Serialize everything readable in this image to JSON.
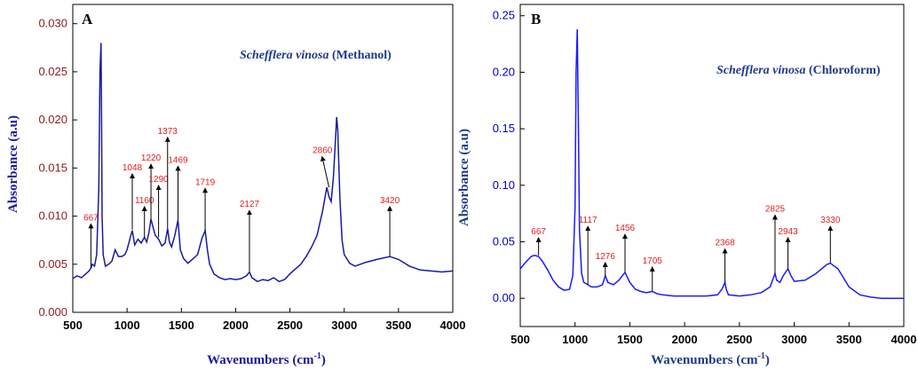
{
  "colors": {
    "axis_text_a": "#8b1a1a",
    "line_a": "#1a1aa0",
    "axis_text_b": "#0000cc",
    "line_b": "#1a1aff",
    "label_red": "#e02020",
    "legend_blue": "#1f3a8a"
  },
  "chart_data": [
    {
      "type": "line",
      "panel": "A",
      "legend_species": "Schefflera vinosa",
      "legend_solvent": " (Methanol)",
      "xlabel": "Wavenumbers (cm",
      "xlabel_sup": "-1",
      "xlabel_end": ")",
      "ylabel": "Absorbance (a.u)",
      "xlim": [
        500,
        4000
      ],
      "ylim": [
        0,
        0.032
      ],
      "xticks": [
        "500",
        "1000",
        "1500",
        "2000",
        "2500",
        "3000",
        "3500",
        "4000"
      ],
      "yticks": [
        "0.000",
        "0.005",
        "0.010",
        "0.015",
        "0.020",
        "0.025",
        "0.030"
      ],
      "grid": false,
      "series": [
        {
          "x": [
            500,
            540,
            580,
            620,
            650,
            667,
            680,
            700,
            720,
            740,
            750,
            760,
            765,
            770,
            780,
            800,
            830,
            860,
            890,
            920,
            950,
            980,
            1000,
            1030,
            1048,
            1070,
            1100,
            1130,
            1160,
            1180,
            1200,
            1220,
            1240,
            1260,
            1290,
            1320,
            1350,
            1373,
            1390,
            1410,
            1440,
            1469,
            1490,
            1520,
            1560,
            1600,
            1650,
            1690,
            1719,
            1740,
            1760,
            1800,
            1850,
            1900,
            1950,
            2000,
            2050,
            2100,
            2127,
            2150,
            2200,
            2250,
            2300,
            2350,
            2400,
            2450,
            2500,
            2550,
            2600,
            2650,
            2700,
            2750,
            2800,
            2840,
            2860,
            2880,
            2900,
            2920,
            2930,
            2940,
            2960,
            2980,
            3000,
            3050,
            3100,
            3200,
            3300,
            3420,
            3500,
            3600,
            3700,
            3800,
            3900,
            4000
          ],
          "y": [
            0.0035,
            0.0038,
            0.0036,
            0.004,
            0.0043,
            0.0046,
            0.005,
            0.0048,
            0.006,
            0.013,
            0.025,
            0.028,
            0.02,
            0.01,
            0.006,
            0.0048,
            0.005,
            0.0053,
            0.0065,
            0.0058,
            0.0058,
            0.006,
            0.0065,
            0.0078,
            0.0085,
            0.007,
            0.0076,
            0.0072,
            0.0078,
            0.0073,
            0.0082,
            0.0097,
            0.0088,
            0.008,
            0.0076,
            0.0069,
            0.0072,
            0.0087,
            0.0073,
            0.0068,
            0.008,
            0.0096,
            0.0065,
            0.0056,
            0.0051,
            0.0055,
            0.006,
            0.0077,
            0.0085,
            0.0065,
            0.005,
            0.004,
            0.0036,
            0.0034,
            0.0035,
            0.0034,
            0.0035,
            0.0038,
            0.0042,
            0.0036,
            0.0032,
            0.0034,
            0.0033,
            0.0036,
            0.0032,
            0.0034,
            0.004,
            0.0045,
            0.005,
            0.0058,
            0.0068,
            0.008,
            0.0105,
            0.013,
            0.012,
            0.0115,
            0.014,
            0.018,
            0.0203,
            0.019,
            0.012,
            0.0075,
            0.006,
            0.0051,
            0.0048,
            0.0052,
            0.0055,
            0.0058,
            0.0055,
            0.0048,
            0.0044,
            0.0043,
            0.0042,
            0.0043
          ]
        }
      ],
      "annotations": [
        {
          "label": "667",
          "x": 667,
          "y_from": 0.0046,
          "y_to": 0.009
        },
        {
          "label": "1048",
          "x": 1048,
          "y_from": 0.0086,
          "y_to": 0.0142
        },
        {
          "label": "1160",
          "x": 1160,
          "y_from": 0.0078,
          "y_to": 0.0108
        },
        {
          "label": "1220",
          "x": 1220,
          "y_from": 0.0097,
          "y_to": 0.0152
        },
        {
          "label": "1290",
          "x": 1290,
          "y_from": 0.0078,
          "y_to": 0.013
        },
        {
          "label": "1373",
          "x": 1373,
          "y_from": 0.0087,
          "y_to": 0.018
        },
        {
          "label": "1469",
          "x": 1469,
          "y_from": 0.0096,
          "y_to": 0.015
        },
        {
          "label": "1719",
          "x": 1719,
          "y_from": 0.0085,
          "y_to": 0.0127
        },
        {
          "label": "2127",
          "x": 2127,
          "y_from": 0.0043,
          "y_to": 0.0104
        },
        {
          "label": "2860",
          "x": 2860,
          "y_from": 0.013,
          "y_to": 0.016,
          "x_from": 2800
        },
        {
          "label": "3420",
          "x": 3420,
          "y_from": 0.0058,
          "y_to": 0.0108
        }
      ]
    },
    {
      "type": "line",
      "panel": "B",
      "legend_species": "Schefflera vinosa",
      "legend_solvent": " (Chloroform)",
      "xlabel": "Wavenumbers (cm",
      "xlabel_sup": "-1",
      "xlabel_end": ")",
      "ylabel": "Absorbance (a.u)",
      "xlim": [
        500,
        4000
      ],
      "ylim": [
        -0.025,
        0.26
      ],
      "xticks": [
        "500",
        "1000",
        "1500",
        "2000",
        "2500",
        "3000",
        "3500",
        "4000"
      ],
      "yticks": [
        "0.00",
        "0.05",
        "0.10",
        "0.15",
        "0.20",
        "0.25"
      ],
      "grid": false,
      "series": [
        {
          "x": [
            500,
            550,
            600,
            630,
            667,
            700,
            750,
            800,
            850,
            900,
            950,
            980,
            1000,
            1010,
            1020,
            1030,
            1040,
            1060,
            1080,
            1117,
            1150,
            1200,
            1250,
            1276,
            1300,
            1350,
            1400,
            1456,
            1500,
            1550,
            1600,
            1650,
            1705,
            1750,
            1800,
            1900,
            2000,
            2100,
            2200,
            2300,
            2340,
            2368,
            2380,
            2400,
            2500,
            2600,
            2700,
            2780,
            2810,
            2825,
            2840,
            2870,
            2900,
            2943,
            2970,
            3000,
            3100,
            3200,
            3300,
            3330,
            3400,
            3500,
            3600,
            3700,
            3800,
            3900,
            4000
          ],
          "y": [
            0.026,
            0.032,
            0.037,
            0.038,
            0.037,
            0.033,
            0.025,
            0.016,
            0.01,
            0.007,
            0.008,
            0.02,
            0.08,
            0.2,
            0.238,
            0.16,
            0.06,
            0.022,
            0.014,
            0.012,
            0.01,
            0.01,
            0.012,
            0.02,
            0.014,
            0.012,
            0.016,
            0.023,
            0.014,
            0.008,
            0.006,
            0.005,
            0.006,
            0.004,
            0.003,
            0.002,
            0.002,
            0.002,
            0.002,
            0.003,
            0.008,
            0.014,
            0.008,
            0.003,
            0.002,
            0.003,
            0.005,
            0.01,
            0.018,
            0.022,
            0.016,
            0.014,
            0.02,
            0.026,
            0.02,
            0.015,
            0.016,
            0.022,
            0.03,
            0.031,
            0.026,
            0.01,
            0.003,
            0.001,
            0.0,
            0.0,
            0.0
          ]
        }
      ],
      "annotations": [
        {
          "label": "667",
          "x": 667,
          "y_from": 0.038,
          "y_to": 0.052
        },
        {
          "label": "1117",
          "x": 1117,
          "y_from": 0.012,
          "y_to": 0.062
        },
        {
          "label": "1276",
          "x": 1276,
          "y_from": 0.02,
          "y_to": 0.03
        },
        {
          "label": "1456",
          "x": 1456,
          "y_from": 0.023,
          "y_to": 0.055
        },
        {
          "label": "1705",
          "x": 1705,
          "y_from": 0.006,
          "y_to": 0.026
        },
        {
          "label": "2368",
          "x": 2368,
          "y_from": 0.014,
          "y_to": 0.042
        },
        {
          "label": "2825",
          "x": 2825,
          "y_from": 0.022,
          "y_to": 0.072
        },
        {
          "label": "2943",
          "x": 2943,
          "y_from": 0.026,
          "y_to": 0.052
        },
        {
          "label": "3330",
          "x": 3330,
          "y_from": 0.031,
          "y_to": 0.062
        }
      ]
    }
  ]
}
